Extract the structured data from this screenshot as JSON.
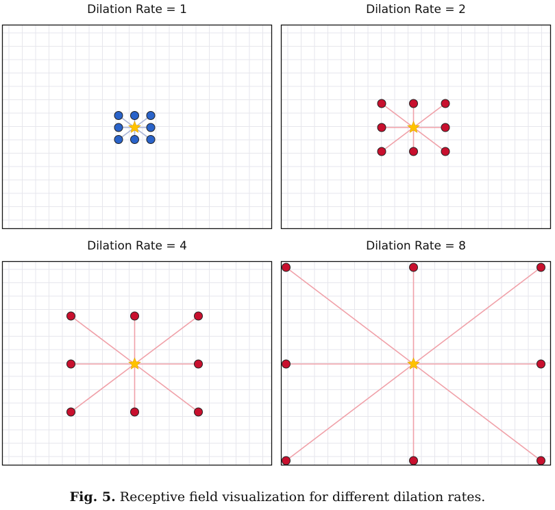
{
  "figure": {
    "panels": [
      {
        "title": "Dilation Rate = 1",
        "rate": 1,
        "point_color": "#2a63c9",
        "line_color": "#a9b4d6"
      },
      {
        "title": "Dilation Rate = 2",
        "rate": 2,
        "point_color": "#c8102e",
        "line_color": "#f0a0a8"
      },
      {
        "title": "Dilation Rate = 4",
        "rate": 4,
        "point_color": "#c8102e",
        "line_color": "#f0a0a8"
      },
      {
        "title": "Dilation Rate = 8",
        "rate": 8,
        "point_color": "#c8102e",
        "line_color": "#f0a0a8"
      }
    ],
    "center_marker_color": "#ffc200",
    "grid_color": "#e6e6ec"
  },
  "caption": {
    "label": "Fig. 5.",
    "text": " Receptive field visualization for different dilation rates."
  }
}
